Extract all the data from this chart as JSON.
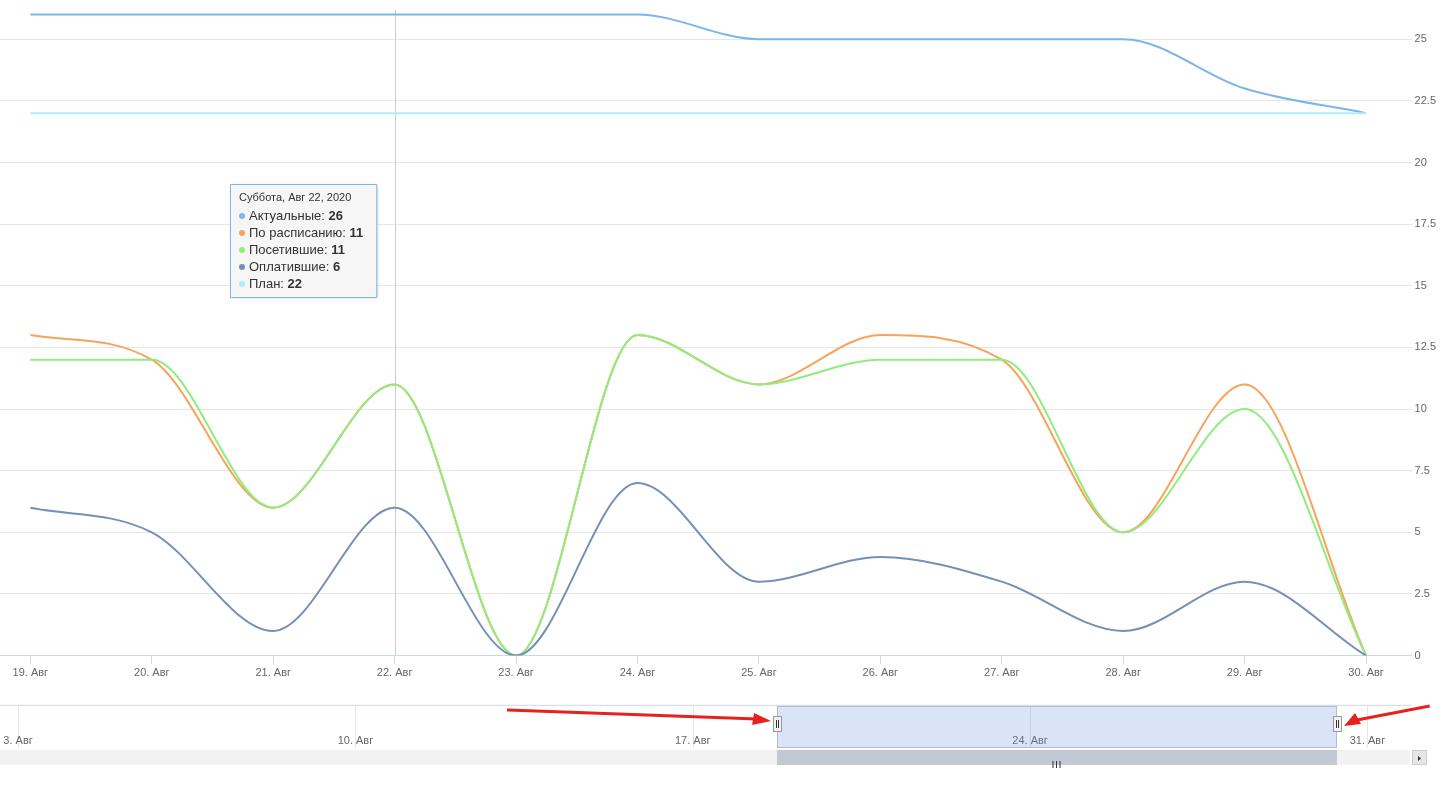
{
  "chart_data": {
    "type": "line",
    "x": [
      "2020-08-19",
      "2020-08-20",
      "2020-08-21",
      "2020-08-22",
      "2020-08-23",
      "2020-08-24",
      "2020-08-25",
      "2020-08-26",
      "2020-08-27",
      "2020-08-28",
      "2020-08-29",
      "2020-08-30"
    ],
    "series": [
      {
        "name": "Актуальные:",
        "color": "#7cb5ec",
        "values": [
          26,
          26,
          26,
          26,
          26,
          26,
          25,
          25,
          25,
          25,
          23,
          22
        ]
      },
      {
        "name": "По расписанию:",
        "color": "#f7a35c",
        "values": [
          13,
          12,
          6,
          11,
          0,
          13,
          11,
          13,
          12,
          5,
          11,
          0
        ]
      },
      {
        "name": "Посетившие:",
        "color": "#90ed7d",
        "values": [
          12,
          12,
          6,
          11,
          0,
          13,
          11,
          12,
          12,
          5,
          10,
          0
        ]
      },
      {
        "name": "Оплатившие:",
        "color": "#7490b9",
        "values": [
          6,
          5,
          1,
          6,
          0,
          7,
          3,
          4,
          3,
          1,
          3,
          0
        ]
      },
      {
        "name": "План:",
        "color": "#aeeef2",
        "values": [
          22,
          22,
          22,
          22,
          22,
          22,
          22,
          22,
          22,
          22,
          22,
          22
        ]
      }
    ],
    "xlim": [
      "2020-08-18T18:00",
      "2020-08-30T09:00"
    ],
    "xticks": [
      {
        "value": "2020-08-19",
        "label": "19. Авг"
      },
      {
        "value": "2020-08-20",
        "label": "20. Авг"
      },
      {
        "value": "2020-08-21",
        "label": "21. Авг"
      },
      {
        "value": "2020-08-22",
        "label": "22. Авг"
      },
      {
        "value": "2020-08-23",
        "label": "23. Авг"
      },
      {
        "value": "2020-08-24",
        "label": "24. Авг"
      },
      {
        "value": "2020-08-25",
        "label": "25. Авг"
      },
      {
        "value": "2020-08-26",
        "label": "26. Авг"
      },
      {
        "value": "2020-08-27",
        "label": "27. Авг"
      },
      {
        "value": "2020-08-28",
        "label": "28. Авг"
      },
      {
        "value": "2020-08-29",
        "label": "29. Авг"
      },
      {
        "value": "2020-08-30",
        "label": "30. Авг"
      }
    ],
    "x2lim": [
      "2020-08-02T15:00",
      "2020-08-31T22:00"
    ],
    "x2ticks": [
      {
        "value": "2020-08-03",
        "label": "3. Авг"
      },
      {
        "value": "2020-08-10",
        "label": "10. Авг"
      },
      {
        "value": "2020-08-17",
        "label": "17. Авг"
      },
      {
        "value": "2020-08-24",
        "label": "24. Авг"
      },
      {
        "value": "2020-08-31",
        "label": "31. Авг"
      }
    ],
    "ylim": [
      0,
      26.2
    ],
    "yticks": [
      0,
      2.5,
      5,
      7.5,
      10,
      12.5,
      15,
      17.5,
      20,
      22.5,
      25
    ],
    "grid": "y",
    "ref_lines": [
      {
        "axis": "x",
        "value": "2020-08-22",
        "color": "#c8ccd2"
      }
    ],
    "legend": "top left",
    "annotations": [
      "Суббота, Авг 22, 2020",
      "26",
      "11",
      "11",
      "6",
      "22"
    ]
  }
}
